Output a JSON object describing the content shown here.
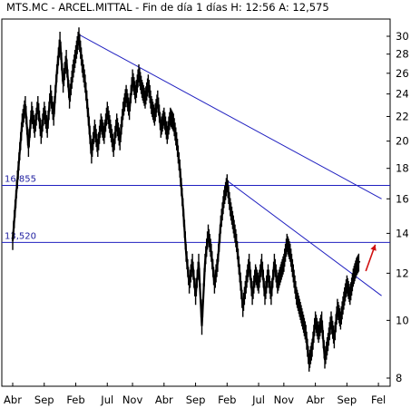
{
  "chart_data": {
    "type": "line",
    "title": "MTS.MC - ARCEL.MITTAL - Fin de día 1 días H: 12:56 A: 12,575",
    "y_scale": "log",
    "ylim": [
      7.8,
      31.5
    ],
    "y_ticks": [
      {
        "label": "30",
        "value": 30
      },
      {
        "label": "28",
        "value": 28
      },
      {
        "label": "26",
        "value": 26
      },
      {
        "label": "24",
        "value": 24
      },
      {
        "label": "22",
        "value": 22
      },
      {
        "label": "20",
        "value": 20
      },
      {
        "label": "18",
        "value": 18
      },
      {
        "label": "16",
        "value": 16
      },
      {
        "label": "14",
        "value": 14
      },
      {
        "label": "12",
        "value": 12
      },
      {
        "label": "10",
        "value": 10
      },
      {
        "label": "8",
        "value": 8
      }
    ],
    "x_ticks": [
      {
        "label": "Abr",
        "t": 0.0
      },
      {
        "label": "Sep",
        "t": 5.0
      },
      {
        "label": "Feb",
        "t": 10.0
      },
      {
        "label": "Jul",
        "t": 15.0
      },
      {
        "label": "Nov",
        "t": 19.0
      },
      {
        "label": "Abr",
        "t": 24.0
      },
      {
        "label": "Sep",
        "t": 29.0
      },
      {
        "label": "Feb",
        "t": 34.0
      },
      {
        "label": "Jul",
        "t": 39.0
      },
      {
        "label": "Nov",
        "t": 43.0
      },
      {
        "label": "Abr",
        "t": 48.0
      },
      {
        "label": "Sep",
        "t": 53.0
      },
      {
        "label": "Fel",
        "t": 58.0
      }
    ],
    "xlim": [
      0,
      60
    ],
    "series": [
      {
        "color": "#000000",
        "points": [
          [
            0.0,
            13.6
          ],
          [
            0.5,
            16.0
          ],
          [
            1.0,
            18.5
          ],
          [
            1.5,
            21.5
          ],
          [
            2.0,
            23.0
          ],
          [
            2.5,
            19.5
          ],
          [
            3.0,
            22.5
          ],
          [
            3.5,
            21.0
          ],
          [
            4.0,
            23.0
          ],
          [
            4.5,
            20.5
          ],
          [
            5.0,
            22.5
          ],
          [
            5.5,
            21.0
          ],
          [
            6.0,
            24.0
          ],
          [
            6.5,
            22.0
          ],
          [
            7.0,
            26.0
          ],
          [
            7.5,
            29.5
          ],
          [
            8.0,
            25.0
          ],
          [
            8.5,
            27.5
          ],
          [
            9.0,
            23.5
          ],
          [
            9.5,
            26.0
          ],
          [
            10.0,
            28.0
          ],
          [
            10.5,
            30.0
          ],
          [
            11.0,
            27.0
          ],
          [
            11.5,
            25.0
          ],
          [
            12.0,
            22.0
          ],
          [
            12.5,
            19.0
          ],
          [
            13.0,
            21.0
          ],
          [
            13.5,
            19.5
          ],
          [
            14.0,
            21.5
          ],
          [
            14.5,
            20.5
          ],
          [
            15.0,
            22.5
          ],
          [
            15.5,
            21.0
          ],
          [
            16.0,
            19.5
          ],
          [
            16.5,
            21.5
          ],
          [
            17.0,
            20.0
          ],
          [
            17.5,
            22.5
          ],
          [
            18.0,
            24.0
          ],
          [
            18.5,
            22.5
          ],
          [
            19.0,
            25.5
          ],
          [
            19.5,
            24.0
          ],
          [
            20.0,
            26.0
          ],
          [
            20.5,
            24.5
          ],
          [
            21.0,
            23.5
          ],
          [
            21.5,
            25.0
          ],
          [
            22.0,
            23.0
          ],
          [
            22.5,
            22.0
          ],
          [
            23.0,
            23.5
          ],
          [
            23.5,
            21.0
          ],
          [
            24.0,
            22.0
          ],
          [
            24.5,
            20.5
          ],
          [
            25.0,
            22.0
          ],
          [
            25.5,
            21.5
          ],
          [
            26.0,
            20.0
          ],
          [
            26.5,
            18.0
          ],
          [
            27.0,
            15.5
          ],
          [
            27.5,
            13.0
          ],
          [
            28.0,
            11.5
          ],
          [
            28.5,
            12.5
          ],
          [
            29.0,
            11.0
          ],
          [
            29.5,
            12.5
          ],
          [
            30.0,
            9.8
          ],
          [
            30.5,
            12.5
          ],
          [
            31.0,
            14.0
          ],
          [
            31.5,
            13.0
          ],
          [
            32.0,
            11.5
          ],
          [
            32.5,
            12.5
          ],
          [
            33.0,
            14.5
          ],
          [
            33.5,
            16.0
          ],
          [
            34.0,
            17.0
          ],
          [
            34.5,
            15.5
          ],
          [
            35.0,
            14.5
          ],
          [
            35.5,
            13.5
          ],
          [
            36.0,
            12.0
          ],
          [
            36.5,
            10.5
          ],
          [
            37.0,
            11.5
          ],
          [
            37.5,
            12.5
          ],
          [
            38.0,
            11.0
          ],
          [
            38.5,
            12.0
          ],
          [
            39.0,
            11.5
          ],
          [
            39.5,
            12.5
          ],
          [
            40.0,
            11.0
          ],
          [
            40.5,
            12.0
          ],
          [
            41.0,
            11.0
          ],
          [
            41.5,
            12.5
          ],
          [
            42.0,
            11.5
          ],
          [
            42.5,
            12.0
          ],
          [
            43.0,
            12.5
          ],
          [
            43.5,
            13.5
          ],
          [
            44.0,
            13.0
          ],
          [
            44.5,
            12.0
          ],
          [
            45.0,
            11.0
          ],
          [
            45.5,
            10.5
          ],
          [
            46.0,
            10.0
          ],
          [
            46.5,
            9.5
          ],
          [
            47.0,
            8.5
          ],
          [
            47.5,
            9.0
          ],
          [
            48.0,
            10.0
          ],
          [
            48.5,
            9.5
          ],
          [
            49.0,
            10.0
          ],
          [
            49.5,
            8.6
          ],
          [
            50.0,
            9.2
          ],
          [
            50.5,
            10.0
          ],
          [
            51.0,
            9.3
          ],
          [
            51.5,
            10.5
          ],
          [
            52.0,
            10.0
          ],
          [
            52.5,
            10.8
          ],
          [
            53.0,
            11.5
          ],
          [
            53.5,
            11.0
          ],
          [
            54.0,
            11.8
          ],
          [
            54.5,
            12.3
          ],
          [
            55.0,
            12.58
          ]
        ]
      }
    ],
    "trendlines": [
      {
        "color": "#2020c0",
        "from": [
          10.5,
          30.2
        ],
        "to": [
          58.5,
          16.0
        ]
      },
      {
        "color": "#2020c0",
        "from": [
          34.2,
          17.1
        ],
        "to": [
          58.5,
          11.0
        ]
      }
    ],
    "levels": [
      {
        "value": 16.855,
        "label": "16,855",
        "color": "#2020c0"
      },
      {
        "value": 13.52,
        "label": "13,520",
        "color": "#2020c0"
      }
    ],
    "arrow": {
      "color": "#d01010",
      "from": [
        56.0,
        12.1
      ],
      "to": [
        57.5,
        13.4
      ]
    }
  }
}
